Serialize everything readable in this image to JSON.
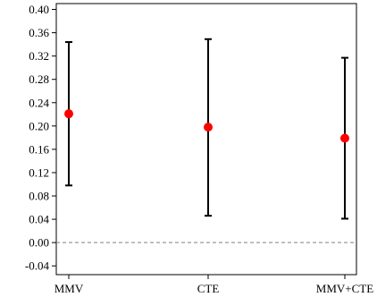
{
  "chart_data": {
    "type": "scatter",
    "subtype": "point-with-error-bars",
    "categories": [
      "MMV",
      "CTE",
      "MMV+CTE"
    ],
    "series": [
      {
        "estimate": [
          0.221,
          0.198,
          0.179
        ],
        "lower": [
          0.098,
          0.046,
          0.041
        ],
        "upper": [
          0.344,
          0.349,
          0.317
        ]
      }
    ],
    "ylim": [
      -0.055,
      0.41
    ],
    "yticks": [
      -0.04,
      0.0,
      0.04,
      0.08,
      0.12,
      0.16,
      0.2,
      0.24,
      0.28,
      0.32,
      0.36,
      0.4
    ],
    "ytick_labels": [
      "-0.04",
      "0.00",
      "0.04",
      "0.08",
      "0.12",
      "0.16",
      "0.20",
      "0.24",
      "0.28",
      "0.32",
      "0.36",
      "0.40"
    ],
    "reference_line": 0,
    "point_color": "#ff0000",
    "bar_color": "#000000",
    "reference_line_color": "#808080",
    "title": "",
    "xlabel": "",
    "ylabel": "",
    "grid": false,
    "legend": "none"
  }
}
